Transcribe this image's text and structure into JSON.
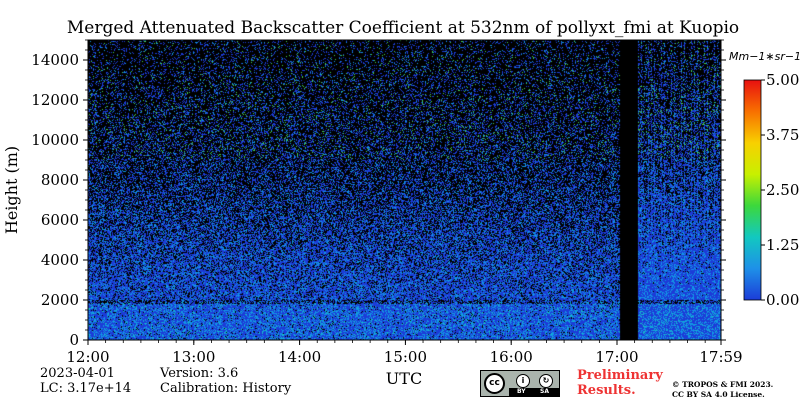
{
  "chart_data": {
    "type": "heatmap",
    "title": "Merged Attenuated Backscatter Coefficient at 532nm of pollyxt_fmi at Kuopio",
    "ylabel": "Height (m)",
    "xlabel": "UTC",
    "x_ticks": [
      "12:00",
      "13:00",
      "14:00",
      "15:00",
      "16:00",
      "17:00",
      "17:59"
    ],
    "x_tick_hours": [
      12.0,
      13.0,
      14.0,
      15.0,
      16.0,
      17.0,
      17.983
    ],
    "xlim_hours": [
      12.0,
      17.983
    ],
    "y_ticks": [
      0,
      2000,
      4000,
      6000,
      8000,
      10000,
      12000,
      14000
    ],
    "ylim": [
      0,
      15000
    ],
    "colorbar": {
      "unit_label": "Mm−1∗sr−1",
      "ticks": [
        "0.00",
        "1.25",
        "2.50",
        "3.75",
        "5.00"
      ],
      "tick_values": [
        0.0,
        1.25,
        2.5,
        3.75,
        5.0
      ],
      "range": [
        0.0,
        5.0
      ],
      "colormap": [
        "#1c3cd8",
        "#1e90e8",
        "#12c8c0",
        "#3cd83c",
        "#c8f000",
        "#f8d000",
        "#f87000",
        "#e81010"
      ]
    },
    "features": {
      "aerosol_layer_top_m": 1900,
      "no_data_gap_hours": [
        17.03,
        17.2
      ],
      "background_color": "#000000",
      "main_signal_color": "#1c3cd8"
    }
  },
  "footer": {
    "date": "2023-04-01",
    "lc": "LC: 3.17e+14",
    "version": "Version: 3.6",
    "calibration": "Calibration: History",
    "utc": "UTC",
    "preliminary_1": "Preliminary",
    "preliminary_2": "Results.",
    "copyright": "© TROPOS & FMI 2023.",
    "license": "CC BY SA 4.0 License.",
    "cc_icon": "cc",
    "by_text": "BY",
    "sa_text": "SA"
  }
}
